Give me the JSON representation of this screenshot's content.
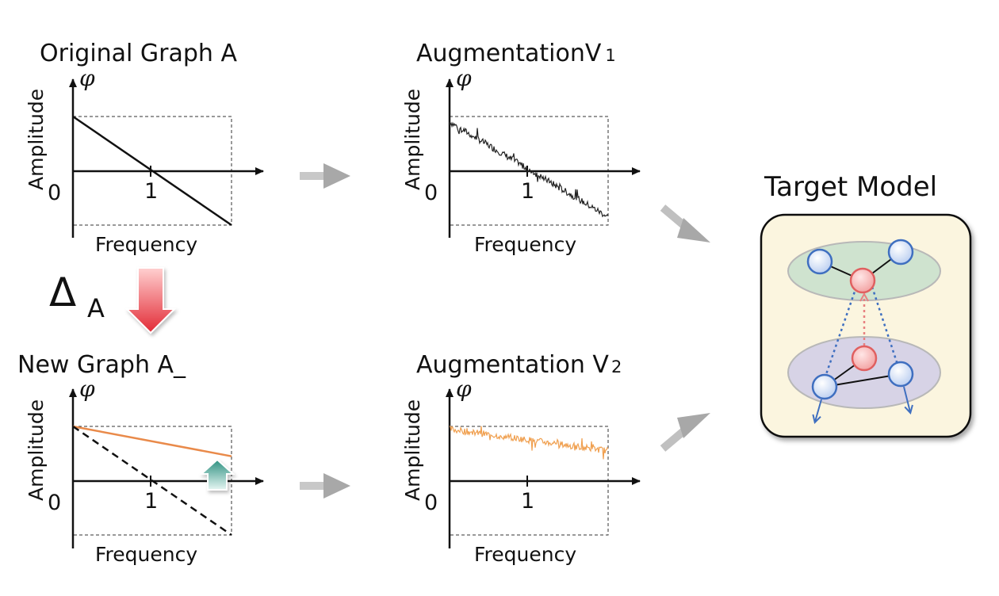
{
  "panels": {
    "original": {
      "title": "Original Graph A",
      "y_symbol": "φ",
      "ylabel": "Amplitude",
      "xlabel": "Frequency",
      "origin_tick": "0",
      "x_tick": "1"
    },
    "aug_v1": {
      "title": "AugmentationV",
      "title_sub": "1",
      "y_symbol": "φ",
      "ylabel": "Amplitude",
      "xlabel": "Frequency",
      "origin_tick": "0",
      "x_tick": "1"
    },
    "new_graph": {
      "title": "New Graph A_",
      "y_symbol": "φ",
      "ylabel": "Amplitude",
      "xlabel": "Frequency",
      "origin_tick": "0",
      "x_tick": "1"
    },
    "aug_v2": {
      "title": "Augmentation V",
      "title_sub": "2",
      "y_symbol": "φ",
      "ylabel": "Amplitude",
      "xlabel": "Frequency",
      "origin_tick": "0",
      "x_tick": "1"
    }
  },
  "delta_label": {
    "main": "Δ",
    "sub": "A"
  },
  "target_model": {
    "title": "Target Model"
  },
  "chart_data": [
    {
      "type": "line",
      "title": "Original Graph A",
      "xlabel": "Frequency",
      "ylabel": "Amplitude",
      "xlim": [
        0,
        2
      ],
      "ylim": [
        -1,
        1
      ],
      "series": [
        {
          "x": [
            0,
            2
          ],
          "values": [
            1,
            -1
          ],
          "color": "#111111",
          "style": "solid"
        }
      ]
    },
    {
      "type": "line",
      "title": "AugmentationV 1",
      "xlabel": "Frequency",
      "ylabel": "Amplitude",
      "xlim": [
        0,
        2
      ],
      "ylim": [
        -1,
        1
      ],
      "series": [
        {
          "x": [
            0,
            2
          ],
          "values": [
            0.9,
            -0.85
          ],
          "color": "#222222",
          "style": "noisy"
        }
      ]
    },
    {
      "type": "line",
      "title": "New Graph A_",
      "xlabel": "Frequency",
      "ylabel": "Amplitude",
      "xlim": [
        0,
        2
      ],
      "ylim": [
        -1,
        1
      ],
      "series": [
        {
          "x": [
            0,
            2
          ],
          "values": [
            1,
            0.45
          ],
          "color": "#e98a4a",
          "style": "solid"
        },
        {
          "x": [
            0,
            2
          ],
          "values": [
            1,
            -1
          ],
          "color": "#111111",
          "style": "dashed"
        }
      ]
    },
    {
      "type": "line",
      "title": "Augmentation V 2",
      "xlabel": "Frequency",
      "ylabel": "Amplitude",
      "xlim": [
        0,
        2
      ],
      "ylim": [
        -1,
        1
      ],
      "series": [
        {
          "x": [
            0,
            2
          ],
          "values": [
            0.95,
            0.55
          ],
          "color": "#f0a050",
          "style": "noisy"
        }
      ]
    }
  ],
  "colors": {
    "curve_dark": "#111111",
    "curve_orange": "#e98a4a",
    "curve_orange_light": "#f0a050",
    "delta_arrow": "#e8444a",
    "up_arrow": "#3a9a8a",
    "flow_arrow": "#aaaaaa",
    "model_bg": "#fbf5df",
    "upper_ellipse": "#cfe3cf",
    "lower_ellipse": "#d7d3e6",
    "node_blue": "#4472c4",
    "node_red": "#e06060"
  }
}
